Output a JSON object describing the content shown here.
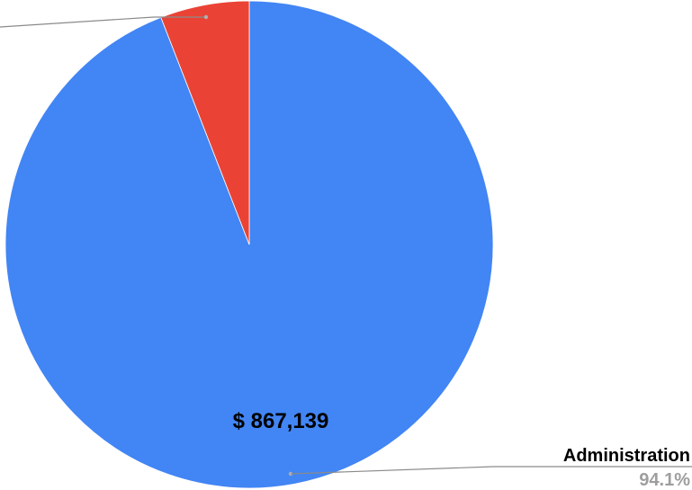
{
  "chart_data": {
    "type": "pie",
    "slices": [
      {
        "label": "Administration",
        "value": 867139,
        "value_label": "$ 867,139",
        "percent": 94.1,
        "percent_label": "94.1%",
        "color": "#4285f4"
      },
      {
        "label": "",
        "value": null,
        "percent": 5.9,
        "color": "#ea4335"
      }
    ]
  }
}
